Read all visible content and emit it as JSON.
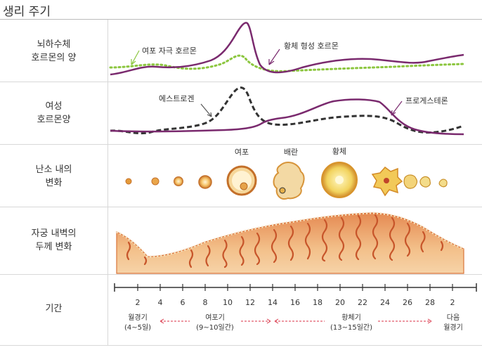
{
  "title": "생리 주기",
  "rows": [
    {
      "label_line1": "뇌하수체",
      "label_line2": "호르몬의 양"
    },
    {
      "label_line1": "여성",
      "label_line2": "호르몬양"
    },
    {
      "label_line1": "난소 내의",
      "label_line2": "변화"
    },
    {
      "label_line1": "자궁 내벽의",
      "label_line2": "두께 변화"
    },
    {
      "label_line1": "기간",
      "label_line2": ""
    }
  ],
  "pituitary": {
    "fsh_label": "여포 자극 호르몬",
    "lh_label": "황체 형성 호르몬",
    "fsh_color": "#8cc63f",
    "lh_color": "#7a2a6e"
  },
  "ovarian_hormones": {
    "estrogen_label": "에스트로겐",
    "progesterone_label": "프로게스테론",
    "estrogen_color": "#333333",
    "progesterone_color": "#7a2a6e"
  },
  "ovary": {
    "follicle_label": "여포",
    "ovulation_label": "배란",
    "corpus_luteum_label": "황체"
  },
  "days": [
    "2",
    "4",
    "6",
    "8",
    "10",
    "12",
    "14",
    "16",
    "18",
    "20",
    "22",
    "24",
    "26",
    "28",
    "2"
  ],
  "phases": [
    {
      "line1": "월경기",
      "line2": "(4~5일)"
    },
    {
      "line1": "여포기",
      "line2": "(9~10일간)"
    },
    {
      "line1": "황체기",
      "line2": "(13~15일간)"
    },
    {
      "line1": "다음",
      "line2": "월경기"
    }
  ],
  "accent_color": "#e05a6a"
}
